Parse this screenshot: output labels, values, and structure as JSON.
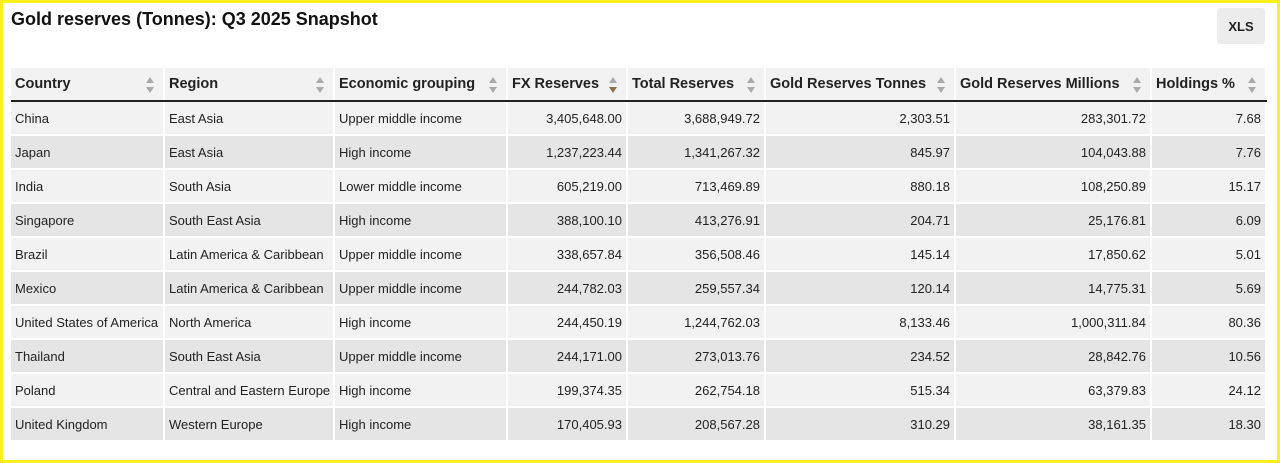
{
  "header": {
    "title": "Gold reserves (Tonnes): Q3 2025 Snapshot",
    "button": "XLS"
  },
  "table": {
    "columns": [
      "Country",
      "Region",
      "Economic grouping",
      "FX Reserves",
      "Total Reserves",
      "Gold Reserves Tonnes",
      "Gold Reserves Millions",
      "Holdings %"
    ],
    "sort": {
      "column": 3,
      "direction": "descending"
    },
    "rows": [
      [
        "China",
        "East Asia",
        "Upper middle income",
        "3,405,648.00",
        "3,688,949.72",
        "2,303.51",
        "283,301.72",
        "7.68"
      ],
      [
        "Japan",
        "East Asia",
        "High income",
        "1,237,223.44",
        "1,341,267.32",
        "845.97",
        "104,043.88",
        "7.76"
      ],
      [
        "India",
        "South Asia",
        "Lower middle income",
        "605,219.00",
        "713,469.89",
        "880.18",
        "108,250.89",
        "15.17"
      ],
      [
        "Singapore",
        "South East Asia",
        "High income",
        "388,100.10",
        "413,276.91",
        "204.71",
        "25,176.81",
        "6.09"
      ],
      [
        "Brazil",
        "Latin America & Caribbean",
        "Upper middle income",
        "338,657.84",
        "356,508.46",
        "145.14",
        "17,850.62",
        "5.01"
      ],
      [
        "Mexico",
        "Latin America & Caribbean",
        "Upper middle income",
        "244,782.03",
        "259,557.34",
        "120.14",
        "14,775.31",
        "5.69"
      ],
      [
        "United States of America",
        "North America",
        "High income",
        "244,450.19",
        "1,244,762.03",
        "8,133.46",
        "1,000,311.84",
        "80.36"
      ],
      [
        "Thailand",
        "South East Asia",
        "Upper middle income",
        "244,171.00",
        "273,013.76",
        "234.52",
        "28,842.76",
        "10.56"
      ],
      [
        "Poland",
        "Central and Eastern Europe",
        "High income",
        "199,374.35",
        "262,754.18",
        "515.34",
        "63,379.83",
        "24.12"
      ],
      [
        "United Kingdom",
        "Western Europe",
        "High income",
        "170,405.93",
        "208,567.28",
        "310.29",
        "38,161.35",
        "18.30"
      ]
    ]
  }
}
